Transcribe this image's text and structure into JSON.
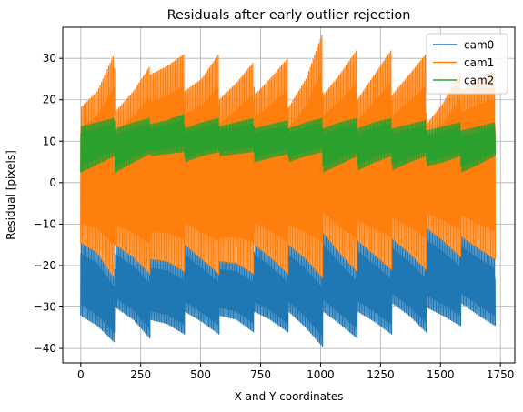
{
  "chart_data": {
    "type": "line",
    "title": "Residuals after early outlier rejection",
    "xlabel": "X and Y coordinates",
    "ylabel": "Residual [pixels]",
    "xlim": [
      -75,
      1810
    ],
    "ylim": [
      -43.5,
      37.5
    ],
    "xticks": [
      0,
      250,
      500,
      750,
      1000,
      1250,
      1500,
      1750
    ],
    "yticks": [
      -40,
      -30,
      -20,
      -10,
      0,
      10,
      20,
      30
    ],
    "grid": true,
    "legend_position": "top-right",
    "n_points": 1728,
    "segments": [
      {
        "start": 0,
        "end": 144
      },
      {
        "start": 144,
        "end": 288
      },
      {
        "start": 288,
        "end": 432
      },
      {
        "start": 432,
        "end": 576
      },
      {
        "start": 576,
        "end": 720
      },
      {
        "start": 720,
        "end": 864
      },
      {
        "start": 864,
        "end": 1008
      },
      {
        "start": 1008,
        "end": 1152
      },
      {
        "start": 1152,
        "end": 1296
      },
      {
        "start": 1296,
        "end": 1440
      },
      {
        "start": 1440,
        "end": 1584
      },
      {
        "start": 1584,
        "end": 1728
      }
    ],
    "series": [
      {
        "name": "cam0",
        "color": "#1f77b4",
        "envelope_low": [
          [
            0,
            -32
          ],
          [
            70,
            -34.5
          ],
          [
            140,
            -38.5
          ],
          [
            144,
            -30
          ],
          [
            220,
            -33
          ],
          [
            288,
            -37.5
          ],
          [
            290,
            -33
          ],
          [
            360,
            -34
          ],
          [
            432,
            -36.5
          ],
          [
            434,
            -31
          ],
          [
            505,
            -33.5
          ],
          [
            576,
            -36.5
          ],
          [
            578,
            -32
          ],
          [
            650,
            -33
          ],
          [
            720,
            -36
          ],
          [
            724,
            -31
          ],
          [
            790,
            -33
          ],
          [
            864,
            -36
          ],
          [
            866,
            -31
          ],
          [
            940,
            -35
          ],
          [
            1008,
            -39.5
          ],
          [
            1010,
            -31
          ],
          [
            1080,
            -34
          ],
          [
            1152,
            -37.5
          ],
          [
            1154,
            -31
          ],
          [
            1225,
            -33.5
          ],
          [
            1296,
            -36.5
          ],
          [
            1298,
            -29
          ],
          [
            1370,
            -32
          ],
          [
            1440,
            -36
          ],
          [
            1442,
            -30
          ],
          [
            1510,
            -32
          ],
          [
            1584,
            -34.5
          ],
          [
            1586,
            -29
          ],
          [
            1660,
            -32
          ],
          [
            1728,
            -34.5
          ]
        ],
        "envelope_high": [
          [
            0,
            -14.5
          ],
          [
            70,
            -17
          ],
          [
            140,
            -23
          ],
          [
            144,
            -15
          ],
          [
            220,
            -18
          ],
          [
            288,
            -22
          ],
          [
            290,
            -18.5
          ],
          [
            360,
            -19
          ],
          [
            432,
            -21.5
          ],
          [
            434,
            -15
          ],
          [
            505,
            -18.5
          ],
          [
            576,
            -22
          ],
          [
            578,
            -19
          ],
          [
            650,
            -19.5
          ],
          [
            720,
            -22
          ],
          [
            724,
            -15
          ],
          [
            790,
            -18
          ],
          [
            864,
            -22
          ],
          [
            866,
            -15
          ],
          [
            940,
            -18.5
          ],
          [
            1008,
            -23
          ],
          [
            1010,
            -12
          ],
          [
            1080,
            -17
          ],
          [
            1152,
            -21.5
          ],
          [
            1154,
            -14
          ],
          [
            1225,
            -17.5
          ],
          [
            1296,
            -21
          ],
          [
            1298,
            -13.5
          ],
          [
            1370,
            -17
          ],
          [
            1440,
            -21
          ],
          [
            1442,
            -11
          ],
          [
            1510,
            -14
          ],
          [
            1584,
            -18
          ],
          [
            1586,
            -13
          ],
          [
            1660,
            -16
          ],
          [
            1728,
            -18.5
          ]
        ]
      },
      {
        "name": "cam1",
        "color": "#ff7f0e",
        "envelope_low": [
          [
            0,
            -14.5
          ],
          [
            70,
            -17
          ],
          [
            140,
            -23
          ],
          [
            144,
            -15
          ],
          [
            220,
            -18
          ],
          [
            288,
            -22
          ],
          [
            290,
            -18.5
          ],
          [
            360,
            -19
          ],
          [
            432,
            -21.5
          ],
          [
            434,
            -15
          ],
          [
            505,
            -18.5
          ],
          [
            576,
            -22
          ],
          [
            578,
            -19
          ],
          [
            650,
            -19.5
          ],
          [
            720,
            -22
          ],
          [
            724,
            -15
          ],
          [
            790,
            -18
          ],
          [
            864,
            -22
          ],
          [
            866,
            -15
          ],
          [
            940,
            -18.5
          ],
          [
            1008,
            -23
          ],
          [
            1010,
            -12
          ],
          [
            1080,
            -17
          ],
          [
            1152,
            -21.5
          ],
          [
            1154,
            -14
          ],
          [
            1225,
            -17.5
          ],
          [
            1296,
            -21
          ],
          [
            1298,
            -13.5
          ],
          [
            1370,
            -17
          ],
          [
            1440,
            -21
          ],
          [
            1442,
            -11
          ],
          [
            1510,
            -14
          ],
          [
            1584,
            -18
          ],
          [
            1586,
            -13
          ],
          [
            1660,
            -16
          ],
          [
            1728,
            -18.5
          ]
        ],
        "envelope_high": [
          [
            0,
            18
          ],
          [
            70,
            22
          ],
          [
            140,
            31
          ],
          [
            144,
            17
          ],
          [
            220,
            22
          ],
          [
            288,
            28
          ],
          [
            290,
            26
          ],
          [
            360,
            28
          ],
          [
            432,
            31
          ],
          [
            434,
            22
          ],
          [
            505,
            25
          ],
          [
            576,
            31
          ],
          [
            578,
            20
          ],
          [
            650,
            24
          ],
          [
            720,
            29
          ],
          [
            724,
            21
          ],
          [
            790,
            25
          ],
          [
            864,
            30
          ],
          [
            866,
            18
          ],
          [
            940,
            25
          ],
          [
            1008,
            36
          ],
          [
            1010,
            21
          ],
          [
            1080,
            26
          ],
          [
            1152,
            32
          ],
          [
            1154,
            20
          ],
          [
            1225,
            26
          ],
          [
            1296,
            32
          ],
          [
            1298,
            21
          ],
          [
            1370,
            26
          ],
          [
            1440,
            31
          ],
          [
            1442,
            14
          ],
          [
            1510,
            19
          ],
          [
            1584,
            27
          ],
          [
            1586,
            22
          ],
          [
            1660,
            25
          ],
          [
            1728,
            27
          ]
        ]
      },
      {
        "name": "cam2",
        "color": "#2ca02c",
        "envelope_low": [
          [
            0,
            2.5
          ],
          [
            70,
            4.5
          ],
          [
            140,
            6.5
          ],
          [
            144,
            2.5
          ],
          [
            220,
            5
          ],
          [
            288,
            7
          ],
          [
            290,
            6.5
          ],
          [
            360,
            7
          ],
          [
            432,
            7.5
          ],
          [
            434,
            5
          ],
          [
            505,
            6.5
          ],
          [
            576,
            7.5
          ],
          [
            578,
            6.5
          ],
          [
            650,
            7
          ],
          [
            720,
            7.5
          ],
          [
            724,
            5
          ],
          [
            790,
            6
          ],
          [
            864,
            7
          ],
          [
            866,
            5
          ],
          [
            940,
            6.5
          ],
          [
            1008,
            7.5
          ],
          [
            1010,
            2.5
          ],
          [
            1080,
            4.5
          ],
          [
            1152,
            6.5
          ],
          [
            1154,
            3
          ],
          [
            1225,
            5
          ],
          [
            1296,
            6.5
          ],
          [
            1298,
            3
          ],
          [
            1370,
            5
          ],
          [
            1440,
            6.5
          ],
          [
            1442,
            4
          ],
          [
            1510,
            5
          ],
          [
            1584,
            6.5
          ],
          [
            1586,
            2.5
          ],
          [
            1660,
            4.5
          ],
          [
            1728,
            6.5
          ]
        ],
        "envelope_high": [
          [
            0,
            13.5
          ],
          [
            70,
            14.5
          ],
          [
            140,
            15.5
          ],
          [
            144,
            13
          ],
          [
            220,
            14.5
          ],
          [
            288,
            15.5
          ],
          [
            290,
            14
          ],
          [
            360,
            15
          ],
          [
            432,
            16.5
          ],
          [
            434,
            13
          ],
          [
            505,
            14.5
          ],
          [
            576,
            15.5
          ],
          [
            578,
            13.5
          ],
          [
            650,
            14.5
          ],
          [
            720,
            15.5
          ],
          [
            724,
            13
          ],
          [
            790,
            14
          ],
          [
            864,
            15
          ],
          [
            866,
            13
          ],
          [
            940,
            14.5
          ],
          [
            1008,
            15.5
          ],
          [
            1010,
            13
          ],
          [
            1080,
            14.5
          ],
          [
            1152,
            15.5
          ],
          [
            1154,
            13
          ],
          [
            1225,
            14.5
          ],
          [
            1296,
            15.5
          ],
          [
            1298,
            13
          ],
          [
            1370,
            14
          ],
          [
            1440,
            15
          ],
          [
            1442,
            12.5
          ],
          [
            1510,
            13.5
          ],
          [
            1584,
            14.5
          ],
          [
            1586,
            12.5
          ],
          [
            1660,
            13.5
          ],
          [
            1728,
            14.5
          ]
        ]
      }
    ]
  }
}
